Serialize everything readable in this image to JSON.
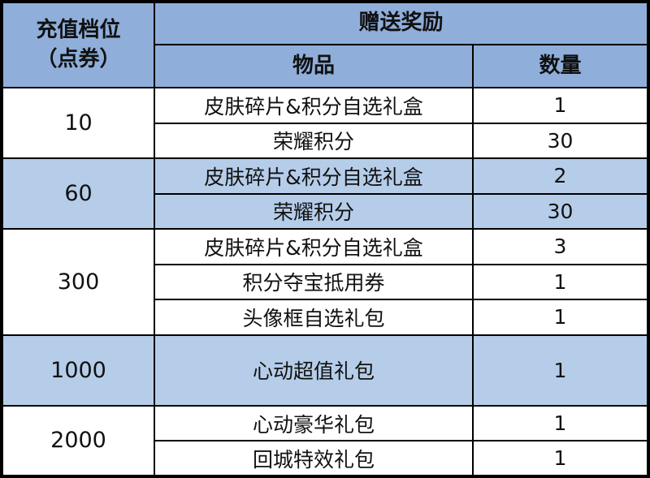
{
  "colors": {
    "header_bg": "#8FAEDA",
    "band_bg": "#B5CDE9",
    "white_bg": "#FFFFFF",
    "border": "#000000",
    "text": "#111111"
  },
  "header": {
    "tier_label_line1": "充值档位",
    "tier_label_line2": "（点券）",
    "reward_label": "赠送奖励",
    "item_label": "物品",
    "qty_label": "数量"
  },
  "groups": [
    {
      "tier": "10",
      "band": "white",
      "rewards": [
        {
          "item": "皮肤碎片&积分自选礼盒",
          "qty": "1"
        },
        {
          "item": "荣耀积分",
          "qty": "30"
        }
      ]
    },
    {
      "tier": "60",
      "band": "blue",
      "rewards": [
        {
          "item": "皮肤碎片&积分自选礼盒",
          "qty": "2"
        },
        {
          "item": "荣耀积分",
          "qty": "30"
        }
      ]
    },
    {
      "tier": "300",
      "band": "white",
      "rewards": [
        {
          "item": "皮肤碎片&积分自选礼盒",
          "qty": "3"
        },
        {
          "item": "积分夺宝抵用券",
          "qty": "1"
        },
        {
          "item": "头像框自选礼包",
          "qty": "1"
        }
      ]
    },
    {
      "tier": "1000",
      "band": "blue",
      "rewards": [
        {
          "item": "心动超值礼包",
          "qty": "1"
        }
      ]
    },
    {
      "tier": "2000",
      "band": "white",
      "rewards": [
        {
          "item": "心动豪华礼包",
          "qty": "1"
        },
        {
          "item": "回城特效礼包",
          "qty": "1"
        }
      ]
    }
  ],
  "chart_data": {
    "type": "table",
    "columns": [
      "充值档位（点券）",
      "物品",
      "数量"
    ],
    "rows": [
      [
        "10",
        "皮肤碎片&积分自选礼盒",
        "1"
      ],
      [
        "10",
        "荣耀积分",
        "30"
      ],
      [
        "60",
        "皮肤碎片&积分自选礼盒",
        "2"
      ],
      [
        "60",
        "荣耀积分",
        "30"
      ],
      [
        "300",
        "皮肤碎片&积分自选礼盒",
        "3"
      ],
      [
        "300",
        "积分夺宝抵用券",
        "1"
      ],
      [
        "300",
        "头像框自选礼包",
        "1"
      ],
      [
        "1000",
        "心动超值礼包",
        "1"
      ],
      [
        "2000",
        "心动豪华礼包",
        "1"
      ],
      [
        "2000",
        "回城特效礼包",
        "1"
      ]
    ]
  }
}
